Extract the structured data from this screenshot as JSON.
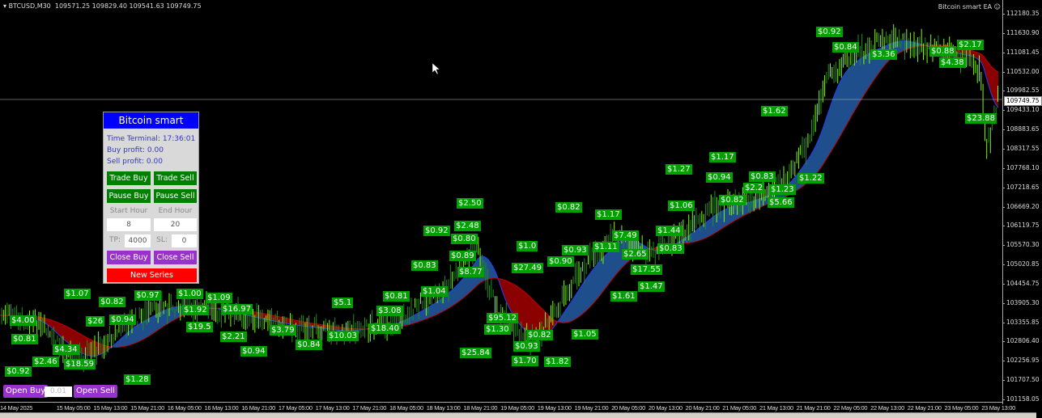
{
  "header": {
    "symbol": "BTCUSD,M30",
    "ohlc": "109571.25 109829.40 109541.63 109749.75",
    "ea_name": "Bitcoin smart EA",
    "ea_icon": "smiley-icon"
  },
  "price_axis": {
    "ticks": [
      "112180.35",
      "111630.90",
      "111081.45",
      "110532.00",
      "109982.55",
      "109433.10",
      "108883.65",
      "108317.55",
      "107768.10",
      "107218.65",
      "106669.20",
      "106119.75",
      "105570.30",
      "105020.85",
      "104454.75",
      "103905.30",
      "103355.85",
      "102806.40",
      "102256.95",
      "101707.50",
      "101158.05"
    ],
    "current": "109749.75"
  },
  "time_axis": {
    "ticks": [
      "14 May 2025",
      "15 May 05:00",
      "15 May 13:00",
      "15 May 21:00",
      "16 May 05:00",
      "16 May 13:00",
      "16 May 21:00",
      "17 May 05:00",
      "17 May 13:00",
      "17 May 21:00",
      "18 May 05:00",
      "18 May 13:00",
      "18 May 21:00",
      "19 May 05:00",
      "19 May 13:00",
      "19 May 21:00",
      "20 May 05:00",
      "20 May 13:00",
      "20 May 21:00",
      "21 May 05:00",
      "21 May 13:00",
      "21 May 21:00",
      "22 May 05:00",
      "22 May 13:00",
      "22 May 21:00",
      "23 May 05:00",
      "23 May 13:00"
    ]
  },
  "panel": {
    "title": "Bitcoin smart",
    "time_terminal": "Time Terminal: 17:36:01",
    "buy_profit": "Buy profit: 0.00",
    "sell_profit": "Sell profit: 0.00",
    "trade_buy": "Trade Buy",
    "trade_sell": "Trade Sell",
    "pause_buy": "Pause Buy",
    "pause_sell": "Pause Sell",
    "start_hour_label": "Start Hour",
    "end_hour_label": "End Hour",
    "start_hour": "8",
    "end_hour": "20",
    "tp_label": "TP:",
    "tp": "4000",
    "sl_label": "SL:",
    "sl": "0",
    "close_buy": "Close Buy",
    "close_sell": "Close Sell",
    "new_series": "New Series"
  },
  "order": {
    "open_buy": "Open Buy",
    "lot": "0.01",
    "open_sell": "Open Sell"
  },
  "colors": {
    "panel_title": "#0000ff",
    "green_button": "#008000",
    "purple_button": "#9932cc",
    "red_button": "#ff0000",
    "profit_tag": "#00a000",
    "bull_candle": "#7cfc00",
    "ma_fill_up": "#1f4e8c",
    "ma_fill_down": "#8b0000"
  },
  "profit_tags": [
    "$0.92",
    "$0.84",
    "$3.36",
    "$2.17",
    "$0.88",
    "$4.38",
    "$1.62",
    "$23.88",
    "$0.83",
    "$1.22",
    "$1.23",
    "$0.82",
    "$5.66",
    "$0.94",
    "$1.27",
    "$1.17",
    "$1.06",
    "$2.2",
    "$1.44",
    "$0.83",
    "$1.47",
    "$1.61",
    "$17.55",
    "$2.65",
    "$1.11",
    "$7.49",
    "$1.17",
    "$0.82",
    "$0.93",
    "$0.90",
    "$27.49",
    "$1.0",
    "$2.50",
    "$2.48",
    "$0.92",
    "$0.80",
    "$0.89",
    "$0.83",
    "$8.77",
    "$1.04",
    "$0.81",
    "$3.08",
    "$5.1",
    "$95.12",
    "$1.30",
    "$0.82",
    "$1.05",
    "$0.93",
    "$25.84",
    "$1.70",
    "$1.82",
    "$18.40",
    "$10.03",
    "$0.84",
    "$3.79",
    "$2.21",
    "$0.94",
    "$19.5",
    "$16.97",
    "$1.92",
    "$1.09",
    "$0.97",
    "$1.00",
    "$0.82",
    "$0.94",
    "$1.07",
    "$26",
    "$4.00",
    "$0.81",
    "$4.34",
    "$2.46",
    "$18.59",
    "$0.92",
    "$1.28"
  ]
}
